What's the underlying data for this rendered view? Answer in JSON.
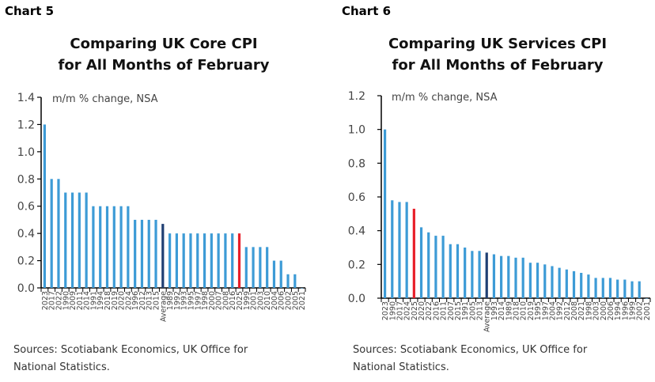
{
  "chart_data": [
    {
      "type": "bar",
      "label": "Chart 5",
      "title_line1": "Comparing UK Core CPI",
      "title_line2": "for All Months of February",
      "ylabel": "m/m % change, NSA",
      "ylim": [
        0,
        1.4
      ],
      "yticks": [
        "0.0",
        "0.2",
        "0.4",
        "0.6",
        "0.8",
        "1.0",
        "1.2",
        "1.4"
      ],
      "categories": [
        "2023",
        "2017",
        "2022",
        "1990",
        "2009",
        "2011",
        "2014",
        "1991",
        "1994",
        "2018",
        "2019",
        "2020",
        "2024",
        "1996",
        "2012",
        "2013",
        "2015",
        "Average",
        "1989",
        "1992",
        "1993",
        "1995",
        "1997",
        "1998",
        "2000",
        "2007",
        "2008",
        "2016",
        "2025",
        "1999",
        "2001",
        "2003",
        "2010",
        "2004",
        "2006",
        "2002",
        "2005",
        "2021"
      ],
      "values": [
        1.2,
        0.8,
        0.8,
        0.7,
        0.7,
        0.7,
        0.7,
        0.6,
        0.6,
        0.6,
        0.6,
        0.6,
        0.6,
        0.5,
        0.5,
        0.5,
        0.5,
        0.47,
        0.4,
        0.4,
        0.4,
        0.4,
        0.4,
        0.4,
        0.4,
        0.4,
        0.4,
        0.4,
        0.4,
        0.3,
        0.3,
        0.3,
        0.3,
        0.2,
        0.2,
        0.1,
        0.1,
        0.0
      ],
      "highlight": {
        "Average": "#1f3f73",
        "2025": "#e8202a"
      },
      "bar_color": "#3d9bd6",
      "source_line1": "Sources: Scotiabank Economics, UK Office for",
      "source_line2": "National Statistics."
    },
    {
      "type": "bar",
      "label": "Chart 6",
      "title_line1": "Comparing UK Services CPI",
      "title_line2": "for All Months of February",
      "ylabel": "m/m % change, NSA",
      "ylim": [
        0,
        1.2
      ],
      "yticks": [
        "0.0",
        "0.2",
        "0.4",
        "0.6",
        "0.8",
        "1.0",
        "1.2"
      ],
      "categories": [
        "2023",
        "1990",
        "2017",
        "2024",
        "2025",
        "2020",
        "2022",
        "2016",
        "2011",
        "2007",
        "2015",
        "1991",
        "2005",
        "2013",
        "Average",
        "1993",
        "2014",
        "1989",
        "2018",
        "2010",
        "2019",
        "1995",
        "1997",
        "2004",
        "1992",
        "2012",
        "2008",
        "2021",
        "1998",
        "2003",
        "2000",
        "2006",
        "1994",
        "1996",
        "1999",
        "2002",
        "2001"
      ],
      "values": [
        1.0,
        0.58,
        0.57,
        0.57,
        0.53,
        0.42,
        0.39,
        0.37,
        0.37,
        0.32,
        0.32,
        0.3,
        0.28,
        0.28,
        0.27,
        0.26,
        0.25,
        0.25,
        0.24,
        0.24,
        0.21,
        0.21,
        0.2,
        0.19,
        0.18,
        0.17,
        0.16,
        0.15,
        0.14,
        0.12,
        0.12,
        0.12,
        0.11,
        0.11,
        0.1,
        0.1,
        0.0
      ],
      "highlight": {
        "Average": "#1f3f73",
        "2025": "#e8202a"
      },
      "bar_color": "#3d9bd6",
      "source_line1": "Sources: Scotiabank Economics, UK Office for",
      "source_line2": "National Statistics."
    }
  ]
}
